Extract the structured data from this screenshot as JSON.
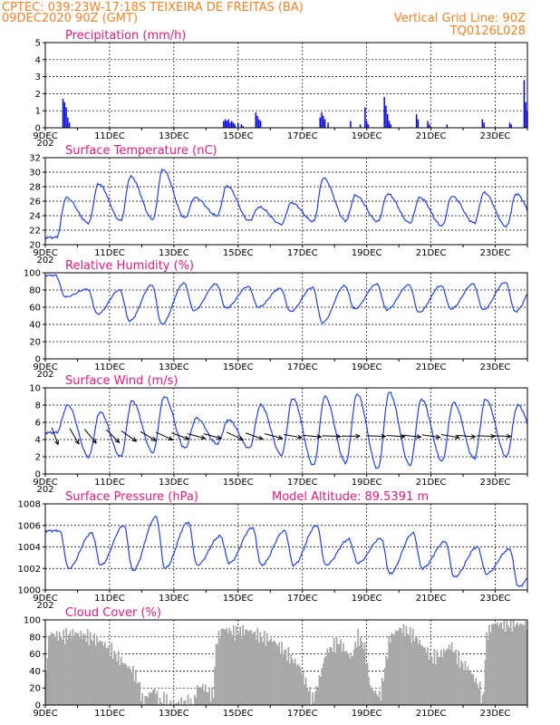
{
  "header": {
    "station": "CPTEC:   039:23W-17:18S   TEIXEIRA DE FREITAS (BA)",
    "date": "09DEC2020 90Z (GMT)",
    "grid_line": "Vertical Grid Line: 90Z",
    "code": "TQ0126L028"
  },
  "x_axis": {
    "start_day": 9,
    "end_day": 24,
    "ticks": [
      {
        "day": 9,
        "label": "9DEC"
      },
      {
        "day": 11,
        "label": "11DEC"
      },
      {
        "day": 13,
        "label": "13DEC"
      },
      {
        "day": 15,
        "label": "15DEC"
      },
      {
        "day": 17,
        "label": "17DEC"
      },
      {
        "day": 19,
        "label": "19DEC"
      },
      {
        "day": 21,
        "label": "21DEC"
      },
      {
        "day": 23,
        "label": "23DEC"
      }
    ],
    "year_stub": "202"
  },
  "colors": {
    "line": "#1f3fff",
    "bar": "#0000e0",
    "cloud": "#a8a8a8",
    "header": "#ff7f24",
    "title": "#e8187c"
  },
  "chart_data": [
    {
      "id": "precip",
      "type": "bar",
      "title": "Precipitation (mm/h)",
      "ylim": [
        0,
        5
      ],
      "yticks": [
        0,
        1,
        2,
        3,
        4,
        5
      ],
      "points": [
        [
          9.55,
          1.7
        ],
        [
          9.6,
          1.5
        ],
        [
          9.65,
          1.2
        ],
        [
          9.7,
          0.6
        ],
        [
          9.75,
          0.3
        ],
        [
          14.55,
          0.4
        ],
        [
          14.6,
          0.5
        ],
        [
          14.65,
          0.4
        ],
        [
          14.7,
          0.5
        ],
        [
          14.75,
          0.3
        ],
        [
          14.8,
          0.4
        ],
        [
          14.85,
          0.3
        ],
        [
          14.9,
          0.2
        ],
        [
          15.0,
          0.3
        ],
        [
          15.1,
          0.2
        ],
        [
          15.15,
          0.1
        ],
        [
          15.55,
          0.9
        ],
        [
          15.6,
          0.7
        ],
        [
          15.65,
          0.5
        ],
        [
          15.7,
          0.4
        ],
        [
          17.55,
          0.6
        ],
        [
          17.6,
          0.9
        ],
        [
          17.65,
          0.7
        ],
        [
          17.7,
          0.5
        ],
        [
          17.8,
          0.3
        ],
        [
          18.5,
          0.4
        ],
        [
          18.8,
          0.2
        ],
        [
          18.95,
          1.2
        ],
        [
          19.0,
          0.4
        ],
        [
          19.05,
          0.2
        ],
        [
          19.55,
          1.8
        ],
        [
          19.6,
          1.3
        ],
        [
          19.65,
          0.8
        ],
        [
          19.7,
          0.4
        ],
        [
          19.75,
          0.2
        ],
        [
          20.55,
          0.8
        ],
        [
          20.6,
          0.5
        ],
        [
          20.9,
          0.4
        ],
        [
          20.95,
          0.2
        ],
        [
          21.5,
          0.2
        ],
        [
          22.6,
          0.5
        ],
        [
          22.65,
          0.3
        ],
        [
          23.45,
          0.3
        ],
        [
          23.5,
          0.2
        ],
        [
          23.9,
          2.8
        ],
        [
          23.95,
          1.5
        ],
        [
          24.0,
          1.0
        ]
      ]
    },
    {
      "id": "temp",
      "type": "line",
      "title": "Surface Temperature (nC)",
      "ylim": [
        20,
        32
      ],
      "yticks": [
        20,
        22,
        24,
        26,
        28,
        30,
        32
      ],
      "daily_min": [
        21.0,
        23.0,
        23.3,
        23.5,
        23.7,
        24.0,
        23.3,
        22.8,
        23.2,
        23.3,
        23.2,
        23.0,
        22.6,
        23.0,
        22.5,
        22.5
      ],
      "daily_max": [
        26.5,
        28.4,
        29.4,
        30.4,
        26.5,
        28.1,
        25.2,
        25.8,
        29.2,
        26.8,
        27.0,
        26.5,
        26.7,
        27.2,
        27.0,
        25.3
      ],
      "max_time": 0.65,
      "min_time": 0.35
    },
    {
      "id": "rh",
      "type": "line",
      "title": "Relative Humidity (%)",
      "ylim": [
        0,
        100
      ],
      "yticks": [
        0,
        20,
        40,
        60,
        80,
        100
      ],
      "daily_high": [
        97,
        81,
        80,
        86,
        88,
        87,
        84,
        82,
        83,
        85,
        87,
        86,
        85,
        87,
        89,
        92
      ],
      "daily_low": [
        72,
        52,
        44,
        40,
        56,
        59,
        60,
        55,
        42,
        58,
        57,
        54,
        58,
        57,
        55,
        53
      ]
    },
    {
      "id": "wind",
      "type": "line",
      "title": "Surface Wind (m/s)",
      "ylim": [
        0,
        10
      ],
      "yticks": [
        0,
        2,
        4,
        6,
        8,
        10
      ],
      "daily_max": [
        8.0,
        7.2,
        8.5,
        9.0,
        6.5,
        6.3,
        8.0,
        8.8,
        9.0,
        9.3,
        9.5,
        8.7,
        8.3,
        8.7,
        8.0,
        6.5
      ],
      "daily_min": [
        4.8,
        2.0,
        2.0,
        2.5,
        3.0,
        3.5,
        3.0,
        2.2,
        1.0,
        1.3,
        0.6,
        1.0,
        1.5,
        1.8,
        2.0,
        3.0
      ],
      "vectors": [
        [
          9.3,
          200
        ],
        [
          9.9,
          210
        ],
        [
          10.4,
          220
        ],
        [
          11.1,
          225
        ],
        [
          11.6,
          235
        ],
        [
          12.2,
          240
        ],
        [
          12.7,
          245
        ],
        [
          13.2,
          250
        ],
        [
          13.7,
          255
        ],
        [
          14.2,
          255
        ],
        [
          14.9,
          245
        ],
        [
          15.5,
          250
        ],
        [
          16.1,
          255
        ],
        [
          16.7,
          260
        ],
        [
          17.3,
          265
        ],
        [
          17.9,
          268
        ],
        [
          18.5,
          270
        ],
        [
          19.3,
          268
        ],
        [
          19.9,
          266
        ],
        [
          20.4,
          264
        ],
        [
          21.0,
          262
        ],
        [
          21.6,
          260
        ],
        [
          22.1,
          265
        ],
        [
          22.7,
          268
        ],
        [
          23.2,
          268
        ]
      ]
    },
    {
      "id": "pres",
      "type": "line",
      "title": "Surface Pressure (hPa)",
      "annotation": "Model Altitude: 89.5391  m",
      "ylim": [
        1000,
        1008
      ],
      "yticks": [
        1000,
        1002,
        1004,
        1006,
        1008
      ],
      "daily_high": [
        1005.5,
        1005.3,
        1006.0,
        1006.8,
        1006.3,
        1005.0,
        1005.8,
        1005.5,
        1006.0,
        1004.7,
        1004.8,
        1005.3,
        1004.5,
        1004.0,
        1003.8,
        1003.0
      ],
      "daily_low": [
        1002.0,
        1002.3,
        1001.8,
        1002.0,
        1002.3,
        1002.5,
        1002.3,
        1002.3,
        1002.3,
        1002.5,
        1001.5,
        1002.0,
        1001.2,
        1001.5,
        1000.3,
        1000.0
      ]
    },
    {
      "id": "cloud",
      "type": "area",
      "title": "Cloud Cover (%)",
      "ylim": [
        0,
        100
      ],
      "yticks": [
        0,
        20,
        40,
        60,
        80,
        100
      ],
      "segments": [
        [
          9.0,
          40
        ],
        [
          9.1,
          85
        ],
        [
          9.5,
          80
        ],
        [
          9.9,
          85
        ],
        [
          10.3,
          80
        ],
        [
          10.7,
          75
        ],
        [
          11.0,
          65
        ],
        [
          11.4,
          50
        ],
        [
          11.7,
          40
        ],
        [
          11.9,
          25
        ],
        [
          12.0,
          5
        ],
        [
          12.4,
          20
        ],
        [
          12.5,
          2
        ],
        [
          12.7,
          8
        ],
        [
          12.8,
          2
        ],
        [
          13.3,
          3
        ],
        [
          13.6,
          2
        ],
        [
          13.7,
          20
        ],
        [
          13.9,
          22
        ],
        [
          14.2,
          10
        ],
        [
          14.3,
          75
        ],
        [
          14.5,
          90
        ],
        [
          14.9,
          85
        ],
        [
          15.3,
          88
        ],
        [
          15.7,
          80
        ],
        [
          16.1,
          75
        ],
        [
          16.5,
          60
        ],
        [
          16.9,
          45
        ],
        [
          17.1,
          25
        ],
        [
          17.3,
          5
        ],
        [
          17.5,
          30
        ],
        [
          17.7,
          60
        ],
        [
          18.1,
          75
        ],
        [
          18.3,
          65
        ],
        [
          18.5,
          55
        ],
        [
          18.7,
          80
        ],
        [
          18.9,
          70
        ],
        [
          19.1,
          20
        ],
        [
          19.4,
          10
        ],
        [
          19.7,
          80
        ],
        [
          20.0,
          90
        ],
        [
          20.3,
          85
        ],
        [
          20.6,
          75
        ],
        [
          21.0,
          55
        ],
        [
          21.3,
          60
        ],
        [
          21.6,
          70
        ],
        [
          21.9,
          50
        ],
        [
          22.2,
          40
        ],
        [
          22.5,
          20
        ],
        [
          22.6,
          0
        ],
        [
          22.7,
          80
        ],
        [
          22.9,
          95
        ],
        [
          23.3,
          95
        ],
        [
          23.7,
          95
        ],
        [
          24.0,
          95
        ]
      ]
    }
  ]
}
